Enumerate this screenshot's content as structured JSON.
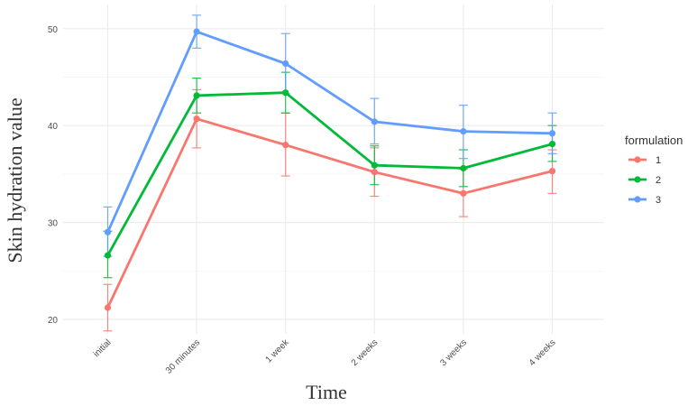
{
  "chart_data": {
    "type": "line",
    "xlabel": "Time",
    "ylabel": "Skin hydration value",
    "categories": [
      "initial",
      "30 minutes",
      "1 week",
      "2 weeks",
      "3 weeks",
      "4 weeks"
    ],
    "ylim": [
      18.5,
      52.5
    ],
    "yticks": [
      20,
      30,
      40,
      50
    ],
    "grid": true,
    "legend": {
      "title": "formulation",
      "position": "right"
    },
    "series": [
      {
        "name": "1",
        "color": "#F8766D",
        "values": [
          21.2,
          40.7,
          38.0,
          35.2,
          33.0,
          35.3
        ],
        "err_low": [
          18.8,
          37.7,
          34.8,
          32.7,
          30.6,
          33.0
        ],
        "err_high": [
          23.6,
          43.7,
          41.3,
          37.7,
          35.5,
          37.5
        ]
      },
      {
        "name": "2",
        "color": "#00BA38",
        "values": [
          26.6,
          43.1,
          43.4,
          35.9,
          35.6,
          38.1
        ],
        "err_low": [
          24.3,
          41.3,
          41.3,
          33.9,
          33.7,
          36.3
        ],
        "err_high": [
          29.1,
          44.9,
          45.5,
          37.9,
          37.5,
          40.0
        ]
      },
      {
        "name": "3",
        "color": "#619CFF",
        "values": [
          29.0,
          49.7,
          46.4,
          40.4,
          39.4,
          39.2
        ],
        "err_low": [
          26.5,
          48.0,
          43.3,
          38.1,
          36.6,
          37.1
        ],
        "err_high": [
          31.6,
          51.4,
          49.5,
          42.8,
          42.1,
          41.3
        ]
      }
    ]
  }
}
